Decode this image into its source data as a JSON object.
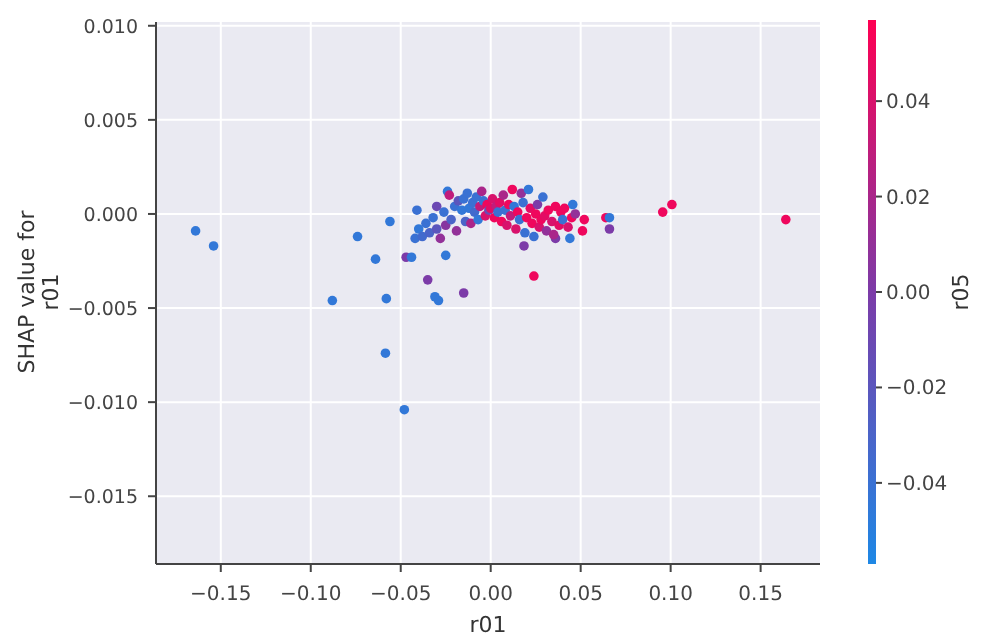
{
  "chart_data": {
    "type": "scatter",
    "xlabel": "r01",
    "ylabel": "SHAP value for\nr01",
    "clabel": "r05",
    "xlim": [
      -0.186,
      0.183
    ],
    "ylim": [
      -0.0186,
      0.0102
    ],
    "xticks": [
      {
        "value": -0.15,
        "label": "−0.15"
      },
      {
        "value": -0.1,
        "label": "−0.10"
      },
      {
        "value": -0.05,
        "label": "−0.05"
      },
      {
        "value": 0,
        "label": "0.00"
      },
      {
        "value": 0.05,
        "label": "0.05"
      },
      {
        "value": 0.1,
        "label": "0.10"
      },
      {
        "value": 0.15,
        "label": "0.15"
      }
    ],
    "yticks": [
      {
        "value": 0.01,
        "label": "0.010"
      },
      {
        "value": 0.005,
        "label": "0.005"
      },
      {
        "value": 0,
        "label": "0.000"
      },
      {
        "value": -0.005,
        "label": "−0.005"
      },
      {
        "value": -0.01,
        "label": "−0.010"
      },
      {
        "value": -0.015,
        "label": "−0.015"
      }
    ],
    "clim": [
      -0.057,
      0.057
    ],
    "cticks": [
      {
        "value": 0.04,
        "label": "0.04"
      },
      {
        "value": 0.02,
        "label": "0.02"
      },
      {
        "value": 0,
        "label": "0.00"
      },
      {
        "value": -0.02,
        "label": "−0.02"
      },
      {
        "value": -0.04,
        "label": "−0.04"
      }
    ],
    "grid": true,
    "marker": "circle",
    "x": [
      -0.164,
      -0.154,
      -0.088,
      -0.074,
      -0.064,
      -0.0585,
      -0.058,
      -0.056,
      -0.048,
      -0.047,
      -0.044,
      -0.035,
      -0.031,
      -0.029,
      -0.025,
      -0.015,
      0.024,
      0.0185,
      0.036,
      0.044,
      0.0456,
      0.051,
      0.052,
      0.064,
      0.066,
      0.066,
      0.0956,
      0.1007,
      0.164,
      -0.042,
      -0.04,
      -0.041,
      -0.038,
      -0.036,
      -0.034,
      -0.032,
      -0.03,
      -0.03,
      -0.028,
      -0.026,
      -0.025,
      -0.024,
      -0.023,
      -0.022,
      -0.02,
      -0.019,
      -0.018,
      -0.016,
      -0.015,
      -0.014,
      -0.013,
      -0.012,
      -0.011,
      -0.01,
      -0.009,
      -0.008,
      -0.007,
      -0.006,
      -0.005,
      -0.004,
      -0.003,
      -0.002,
      -0.001,
      0,
      0.001,
      0.002,
      0.003,
      0.004,
      0.005,
      0.006,
      0.007,
      0.008,
      0.009,
      0.01,
      0.011,
      0.012,
      0.013,
      0.014,
      0.015,
      0.016,
      0.017,
      0.018,
      0.019,
      0.02,
      0.021,
      0.022,
      0.023,
      0.024,
      0.025,
      0.026,
      0.027,
      0.028,
      0.029,
      0.03,
      0.031,
      0.032,
      0.034,
      0.035,
      0.036,
      0.038,
      0.039,
      0.04,
      0.041,
      0.043,
      0.045,
      0.047
    ],
    "values": [
      -0.0009,
      -0.0017,
      -0.0046,
      -0.0012,
      -0.0024,
      -0.0074,
      -0.0045,
      -0.0004,
      -0.0104,
      -0.0023,
      -0.0023,
      -0.0035,
      -0.0044,
      -0.0046,
      -0.0022,
      -0.0042,
      -0.0033,
      -0.0017,
      -0.0013,
      -0.0013,
      0.0005,
      -0.0009,
      -0.0003,
      -0.0002,
      -0.0002,
      -0.0008,
      0.0001,
      0.0005,
      -0.0003,
      -0.0013,
      -0.0008,
      0.0002,
      -0.0012,
      -0.0005,
      -0.001,
      -0.0002,
      0.0004,
      -0.0008,
      -0.0013,
      0.0001,
      -0.0006,
      0.0012,
      0.001,
      -0.0003,
      0.0004,
      -0.0009,
      0.0007,
      0.0002,
      0.0008,
      -0.0004,
      0.0011,
      0.0003,
      -0.0005,
      0.0006,
      0.0001,
      0.0009,
      -0.0003,
      0.0004,
      0.0012,
      0.0007,
      -0.0001,
      0.0005,
      0.0002,
      0.0003,
      0.0008,
      -0.0002,
      0.0004,
      0.0001,
      0.0006,
      -0.0004,
      0.001,
      0.0002,
      -0.0006,
      0.0005,
      -0.0001,
      0.0013,
      0.0004,
      -0.0008,
      0.0001,
      -0.0003,
      0.0011,
      0.0006,
      -0.001,
      -0.0002,
      0.0013,
      0.0003,
      -0.0005,
      -0.0012,
      0,
      0.0005,
      -0.0007,
      -0.0003,
      0.0009,
      -0.0001,
      -0.0009,
      0.0002,
      -0.0004,
      -0.0011,
      0.0004,
      -0.0006,
      0.0001,
      -0.0003,
      0.0003,
      -0.0007,
      -0.0002,
      0
    ],
    "cvalues": [
      -0.045,
      -0.045,
      -0.045,
      -0.045,
      -0.045,
      -0.045,
      -0.045,
      -0.045,
      -0.045,
      0,
      -0.045,
      0,
      -0.045,
      -0.045,
      -0.045,
      0,
      0.05,
      0,
      0,
      -0.045,
      -0.045,
      0.05,
      0.05,
      0.05,
      -0.045,
      0,
      0.05,
      0.05,
      0.05,
      -0.04,
      -0.045,
      -0.04,
      -0.035,
      -0.04,
      -0.03,
      -0.04,
      -0.01,
      -0.02,
      0.01,
      -0.04,
      0.005,
      -0.045,
      0.03,
      -0.03,
      -0.04,
      0.01,
      -0.02,
      -0.045,
      -0.04,
      -0.03,
      -0.04,
      -0.045,
      0.02,
      -0.04,
      -0.035,
      -0.04,
      -0.045,
      0.03,
      0.02,
      -0.04,
      0.04,
      0.05,
      -0.01,
      0.045,
      0.04,
      0.05,
      0.03,
      -0.04,
      0.045,
      0.05,
      0.02,
      -0.04,
      0.04,
      0.05,
      0.03,
      0.05,
      -0.045,
      0.04,
      0.05,
      -0.04,
      0.01,
      -0.04,
      -0.04,
      0.05,
      -0.045,
      0.045,
      0.05,
      -0.04,
      0.05,
      0,
      0.04,
      0.05,
      -0.04,
      0.045,
      0.01,
      0.05,
      0.04,
      0.02,
      0.05,
      0.045,
      0.05,
      -0.04,
      0.05,
      0.04,
      0.05,
      0.01
    ]
  }
}
